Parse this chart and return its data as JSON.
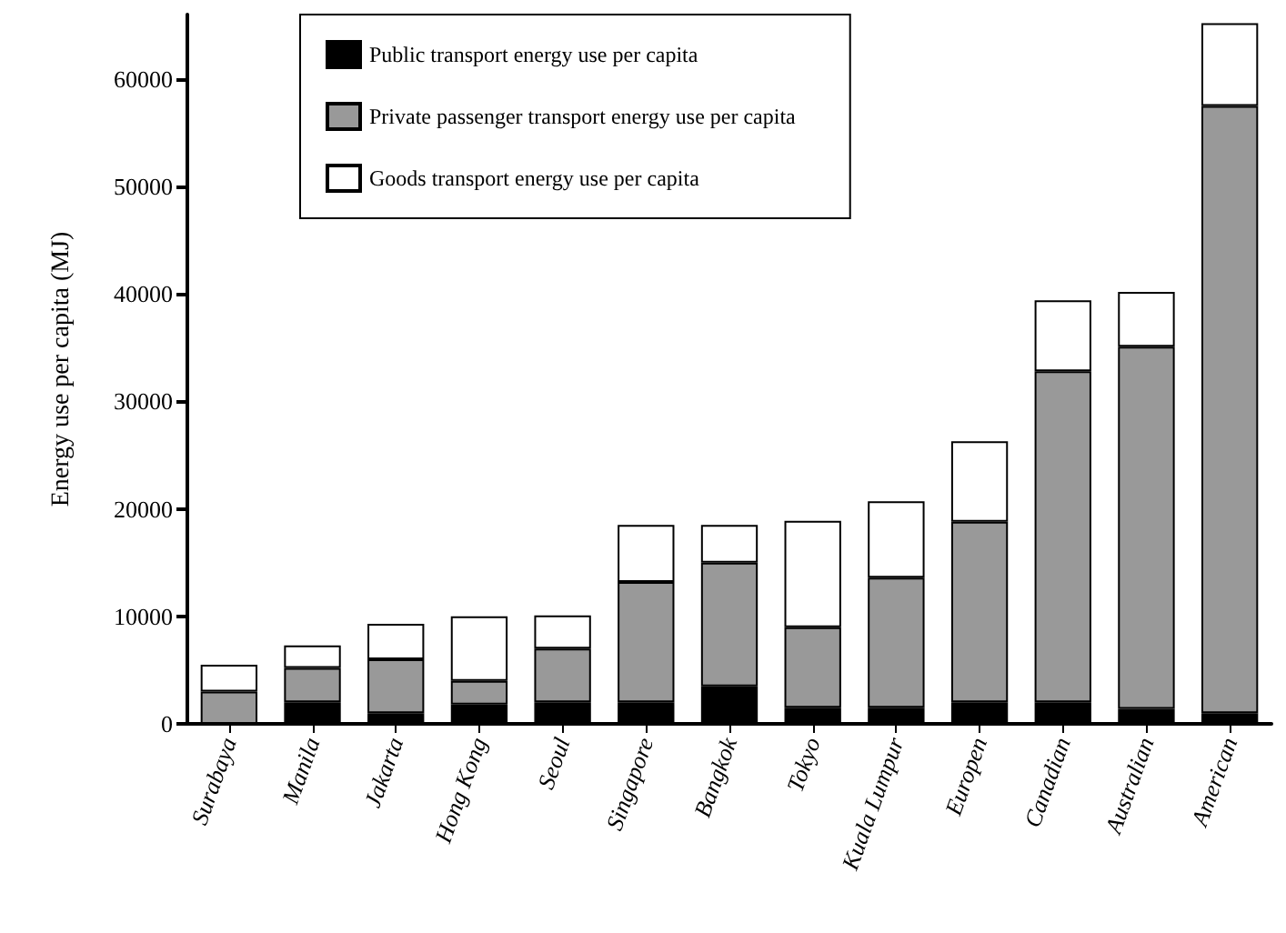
{
  "chart_data": {
    "type": "bar",
    "stacked": true,
    "ylabel": "Energy use per capita (MJ)",
    "categories": [
      "Surabaya",
      "Manila",
      "Jakarta",
      "Hong Kong",
      "Seoul",
      "Singapore",
      "Bangkok",
      "Tokyo",
      "Kuala Lumpur",
      "Europen",
      "Canadian",
      "Australian",
      "American"
    ],
    "series": [
      {
        "name": "Public transport energy use per capita",
        "color": "#000000",
        "values": [
          0,
          2000,
          1000,
          1800,
          2000,
          2000,
          3500,
          1500,
          1500,
          2000,
          2000,
          1400,
          1000
        ]
      },
      {
        "name": "Private passenger transport energy use per capita",
        "color": "#999999",
        "values": [
          3000,
          3200,
          5000,
          2200,
          5000,
          11200,
          11500,
          7500,
          12100,
          16800,
          30800,
          33700,
          56500
        ]
      },
      {
        "name": "Goods transport energy use per capita",
        "color": "#ffffff",
        "values": [
          2500,
          2100,
          3300,
          6000,
          3100,
          5300,
          3500,
          9900,
          7100,
          7500,
          6600,
          5100,
          7700
        ]
      }
    ],
    "ylim": [
      0,
      66000
    ],
    "yticks": [
      0,
      10000,
      20000,
      30000,
      40000,
      50000,
      60000
    ],
    "grid": false,
    "legend": "top"
  }
}
